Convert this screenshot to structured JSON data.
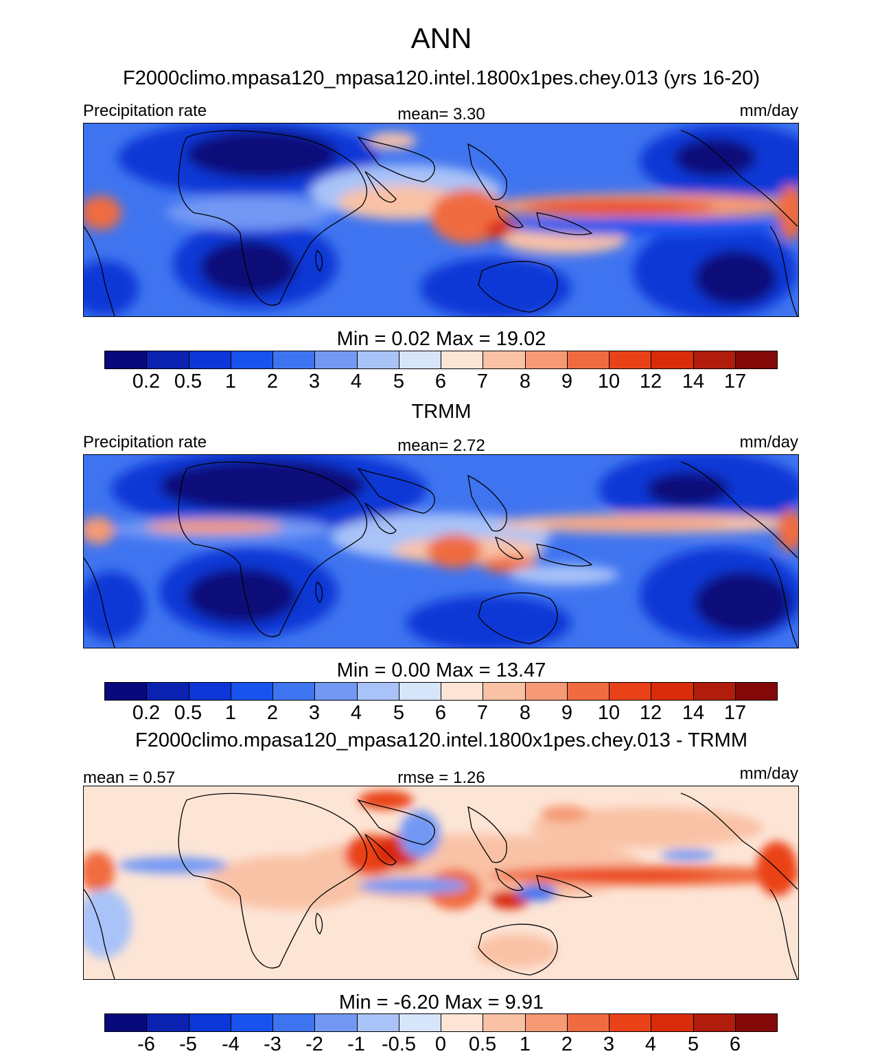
{
  "figure": {
    "title": "ANN",
    "units": "mm/day",
    "variable": "Precipitation rate"
  },
  "panels": [
    {
      "title": "F2000climo.mpasa120_mpasa120.intel.1800x1pes.chey.013 (yrs 16-20)",
      "left_label": "Precipitation rate",
      "center_label": "mean=   3.30",
      "right_label": "mm/day",
      "minmax": "Min =   0.02 Max =  19.02"
    },
    {
      "title": "TRMM",
      "left_label": "Precipitation rate",
      "center_label": "mean=   2.72",
      "right_label": "mm/day",
      "minmax": "Min =   0.00 Max =  13.47"
    },
    {
      "title": "F2000climo.mpasa120_mpasa120.intel.1800x1pes.chey.013 - TRMM",
      "left_label": "mean =   0.57",
      "center_label": "rmse =   1.26",
      "right_label": "mm/day",
      "minmax": "Min =  -6.20 Max =   9.91"
    }
  ],
  "colorbars": {
    "colors": [
      "#08097a",
      "#0b22b0",
      "#0c37d6",
      "#1a52ee",
      "#3f74f0",
      "#7398f4",
      "#a9c3f8",
      "#d7e5fb",
      "#fde5d6",
      "#f9c2a6",
      "#f59a74",
      "#f06c40",
      "#ea4218",
      "#d92c0c",
      "#b11d0c",
      "#840808"
    ],
    "precip_ticks": [
      "0.2",
      "0.5",
      "1",
      "2",
      "3",
      "4",
      "5",
      "6",
      "7",
      "8",
      "9",
      "10",
      "12",
      "14",
      "17"
    ],
    "diff_ticks": [
      "-6",
      "-5",
      "-4",
      "-3",
      "-2",
      "-1",
      "-0.5",
      "0",
      "0.5",
      "1",
      "2",
      "3",
      "4",
      "5",
      "6"
    ]
  }
}
